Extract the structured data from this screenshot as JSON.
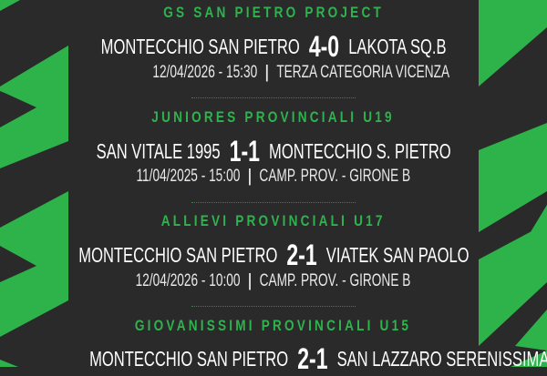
{
  "colors": {
    "background": "#2a2a2a",
    "accent": "#2fb34e",
    "text": "#ffffff"
  },
  "matches": [
    {
      "category": "GS SAN PIETRO PROJECT",
      "home": "MONTECCHIO SAN PIETRO",
      "score": "4-0",
      "away": "LAKOTA SQ.B",
      "datetime": "12/04/2026 - 15:30",
      "competition": "TERZA CATEGORIA VICENZA"
    },
    {
      "category": "JUNIORES PROVINCIALI U19",
      "home": "SAN VITALE 1995",
      "score": "1-1",
      "away": "MONTECCHIO S. PIETRO",
      "datetime": "11/04/2025 - 15:00",
      "competition": "CAMP. PROV. - GIRONE B"
    },
    {
      "category": "ALLIEVI PROVINCIALI U17",
      "home": "MONTECCHIO SAN PIETRO",
      "score": "2-1",
      "away": "VIATEK SAN PAOLO",
      "datetime": "12/04/2026 - 10:00",
      "competition": "CAMP. PROV. - GIRONE B"
    },
    {
      "category": "GIOVANISSIMI PROVINCIALI U15",
      "home": "MONTECCHIO SAN PIETRO",
      "score": "2-1",
      "away": "SAN LAZZARO SERENISSIMA"
    }
  ],
  "separator": "|"
}
